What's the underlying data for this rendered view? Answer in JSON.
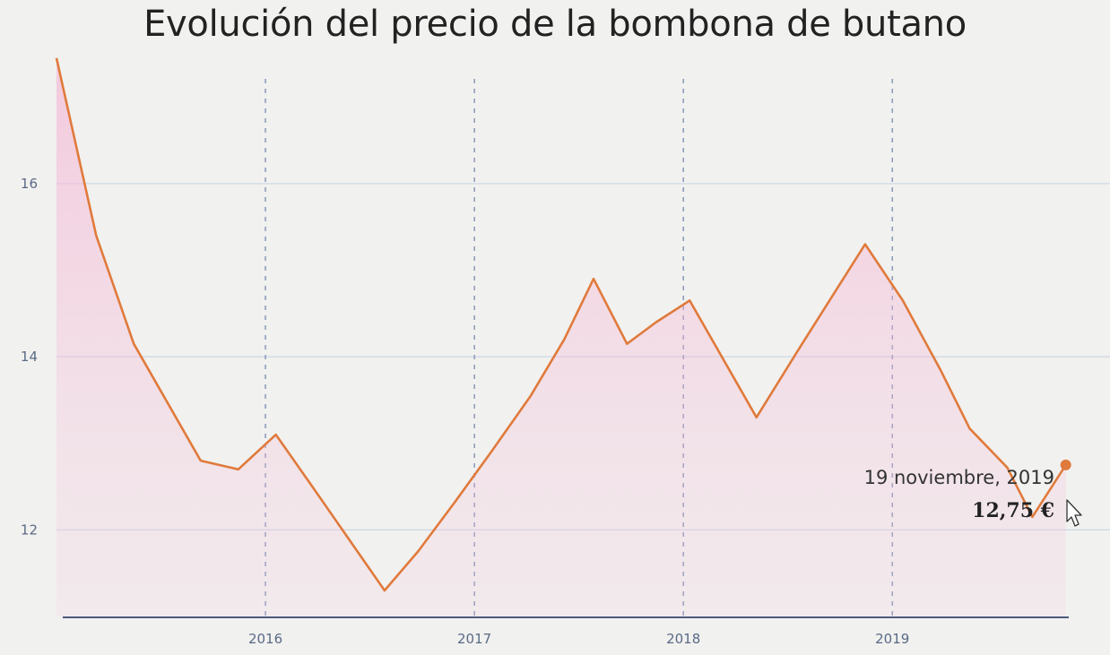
{
  "chart_data": {
    "type": "area",
    "title": "Evolución del precio de la bombona de butano",
    "xlabel": "",
    "ylabel": "",
    "x_ticks": [
      "2016",
      "2017",
      "2018",
      "2019"
    ],
    "x_tick_years": [
      2016,
      2017,
      2018,
      2019
    ],
    "y_ticks": [
      "12",
      "14",
      "16"
    ],
    "y_tick_values": [
      12,
      14,
      16
    ],
    "xlim": [
      2015.0,
      2019.87
    ],
    "ylim": [
      11.0,
      17.5
    ],
    "grid": true,
    "series": [
      {
        "color": "#e07a3c",
        "x": [
          2015.0,
          2015.19,
          2015.37,
          2015.69,
          2015.87,
          2016.05,
          2016.23,
          2016.57,
          2016.73,
          2016.9,
          2017.08,
          2017.27,
          2017.43,
          2017.57,
          2017.73,
          2017.87,
          2018.03,
          2018.35,
          2018.55,
          2018.87,
          2019.05,
          2019.23,
          2019.37,
          2019.55,
          2019.67,
          2019.83
        ],
        "y": [
          17.45,
          15.4,
          14.15,
          12.8,
          12.7,
          13.1,
          12.48,
          11.3,
          11.75,
          12.3,
          12.9,
          13.55,
          14.2,
          14.9,
          14.15,
          14.4,
          14.65,
          13.3,
          14.08,
          15.3,
          14.65,
          13.85,
          13.17,
          12.72,
          12.15,
          12.75
        ]
      }
    ],
    "tooltip": {
      "date": "19 noviembre, 2019",
      "value": "12,75 €"
    }
  }
}
